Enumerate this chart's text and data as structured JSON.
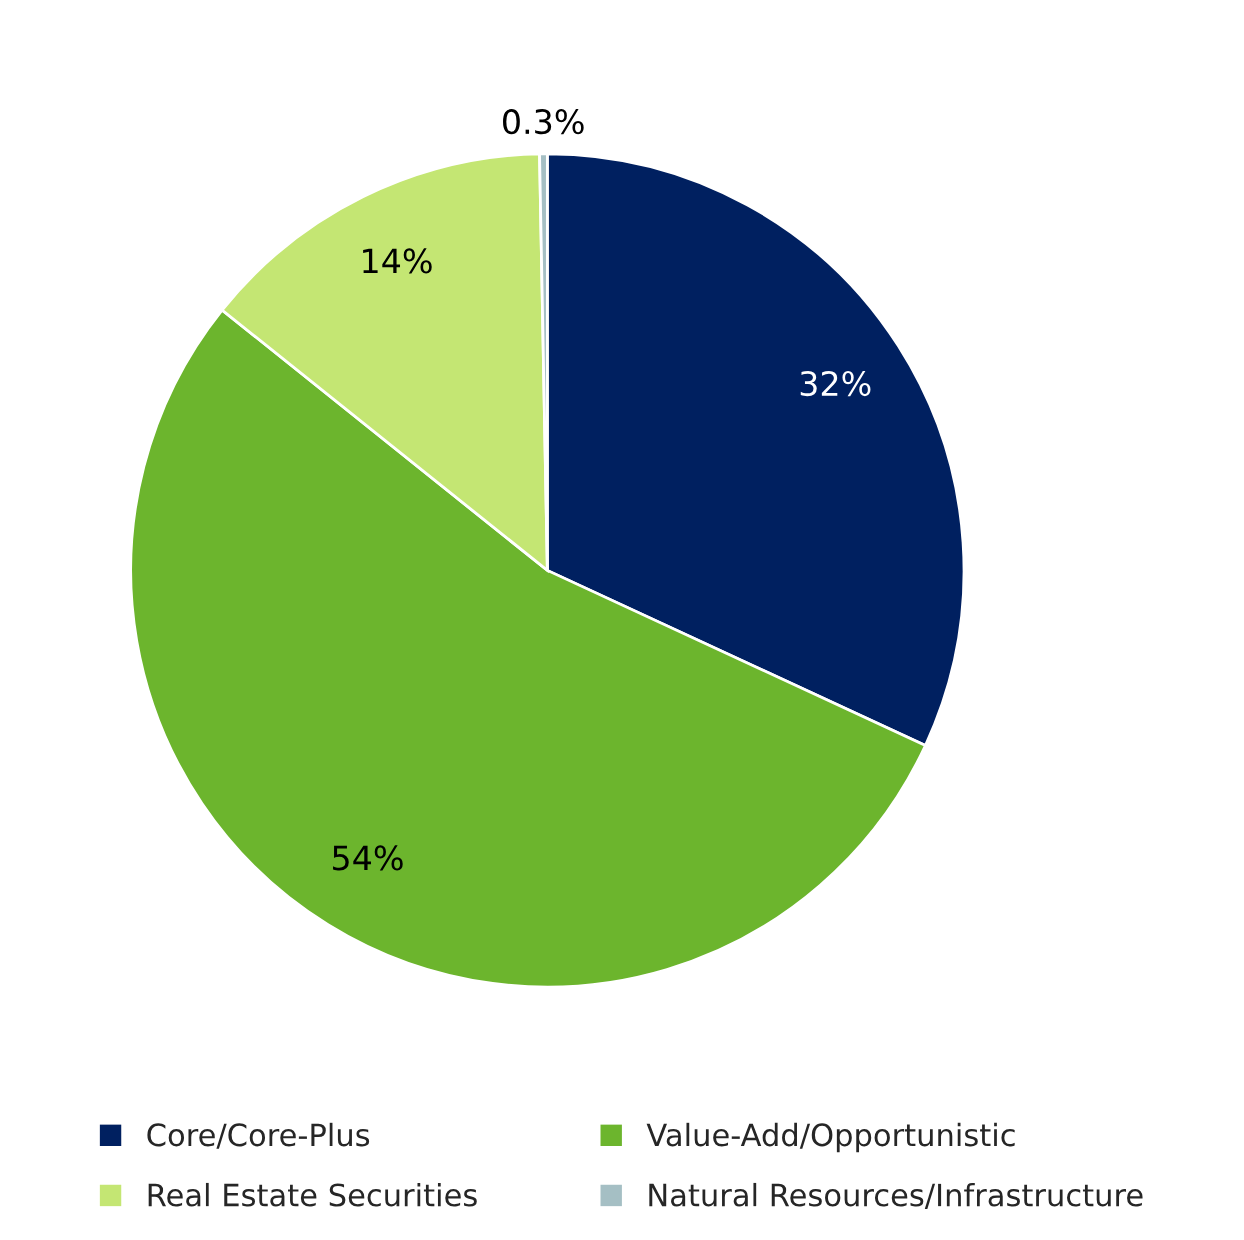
{
  "chart_data": {
    "type": "pie",
    "categories": [
      "Core/Core-Plus",
      "Value-Add/Opportunistic",
      "Real Estate Securities",
      "Natural Resources/Infrastructure"
    ],
    "values": [
      32,
      54,
      14,
      0.3
    ],
    "colors": [
      "#002060",
      "#6cb52d",
      "#c4e673",
      "#a5bfc4"
    ],
    "value_labels": [
      "32%",
      "54%",
      "14%",
      "0.3%"
    ],
    "legend": "bottom"
  }
}
